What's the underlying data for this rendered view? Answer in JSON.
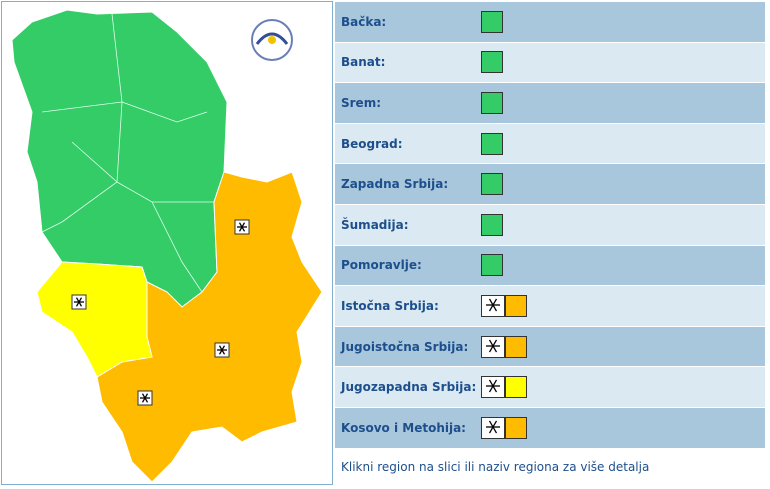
{
  "regions": [
    {
      "name": "Bačka:",
      "color": "#33cc66",
      "warning": null
    },
    {
      "name": "Banat:",
      "color": "#33cc66",
      "warning": null
    },
    {
      "name": "Srem:",
      "color": "#33cc66",
      "warning": null
    },
    {
      "name": "Beograd:",
      "color": "#33cc66",
      "warning": null
    },
    {
      "name": "Zapadna Srbija:",
      "color": "#33cc66",
      "warning": null
    },
    {
      "name": "Šumadija:",
      "color": "#33cc66",
      "warning": null
    },
    {
      "name": "Pomoravlje:",
      "color": "#33cc66",
      "warning": null
    },
    {
      "name": "Istočna Srbija:",
      "color": "#ffbb00",
      "warning": "snow"
    },
    {
      "name": "Jugoistočna Srbija:",
      "color": "#ffbb00",
      "warning": "snow"
    },
    {
      "name": "Jugozapadna Srbija:",
      "color": "#ffff00",
      "warning": "snow"
    },
    {
      "name": "Kosovo i Metohija:",
      "color": "#ffbb00",
      "warning": "snow"
    }
  ],
  "footer": "Klikni region na slici ili naziv regiona za više detalja"
}
